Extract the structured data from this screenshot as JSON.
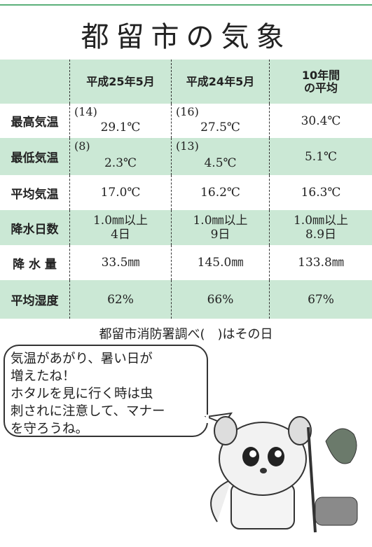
{
  "title": "都留市の気象",
  "table": {
    "header": [
      [
        ""
      ],
      [
        "平成25年5月"
      ],
      [
        "平成24年5月"
      ],
      [
        "10年間",
        "の平均"
      ]
    ],
    "rows": [
      {
        "label": "最高気温",
        "cells": [
          {
            "note": "(14)",
            "lines": [
              "29.1℃"
            ]
          },
          {
            "note": "(16)",
            "lines": [
              "27.5℃"
            ]
          },
          {
            "lines": [
              "30.4℃"
            ]
          }
        ]
      },
      {
        "label": "最低気温",
        "cells": [
          {
            "note": "(8)",
            "lines": [
              "2.3℃"
            ]
          },
          {
            "note": "(13)",
            "lines": [
              "4.5℃"
            ]
          },
          {
            "lines": [
              "5.1℃"
            ]
          }
        ]
      },
      {
        "label": "平均気温",
        "cells": [
          {
            "lines": [
              "17.0℃"
            ]
          },
          {
            "lines": [
              "16.2℃"
            ]
          },
          {
            "lines": [
              "16.3℃"
            ]
          }
        ]
      },
      {
        "label": "降水日数",
        "cells": [
          {
            "lines": [
              "1.0㎜以上",
              "4日"
            ]
          },
          {
            "lines": [
              "1.0㎜以上",
              "9日"
            ]
          },
          {
            "lines": [
              "1.0㎜以上",
              "8.9日"
            ]
          }
        ]
      },
      {
        "label": "降 水 量",
        "cells": [
          {
            "lines": [
              "33.5㎜"
            ]
          },
          {
            "lines": [
              "145.0㎜"
            ]
          },
          {
            "lines": [
              "133.8㎜"
            ]
          }
        ]
      },
      {
        "label": "平均湿度",
        "cells": [
          {
            "lines": [
              "62%"
            ]
          },
          {
            "lines": [
              "66%"
            ]
          },
          {
            "lines": [
              "67%"
            ]
          }
        ]
      }
    ]
  },
  "footnote": "都留市消防署調べ(　)はその日",
  "bubble": [
    "気温があがり、暑い日が",
    "増えたね！",
    "ホタルを見に行く時は虫",
    "刺されに注意して、マナー",
    "を守ろうね。"
  ]
}
